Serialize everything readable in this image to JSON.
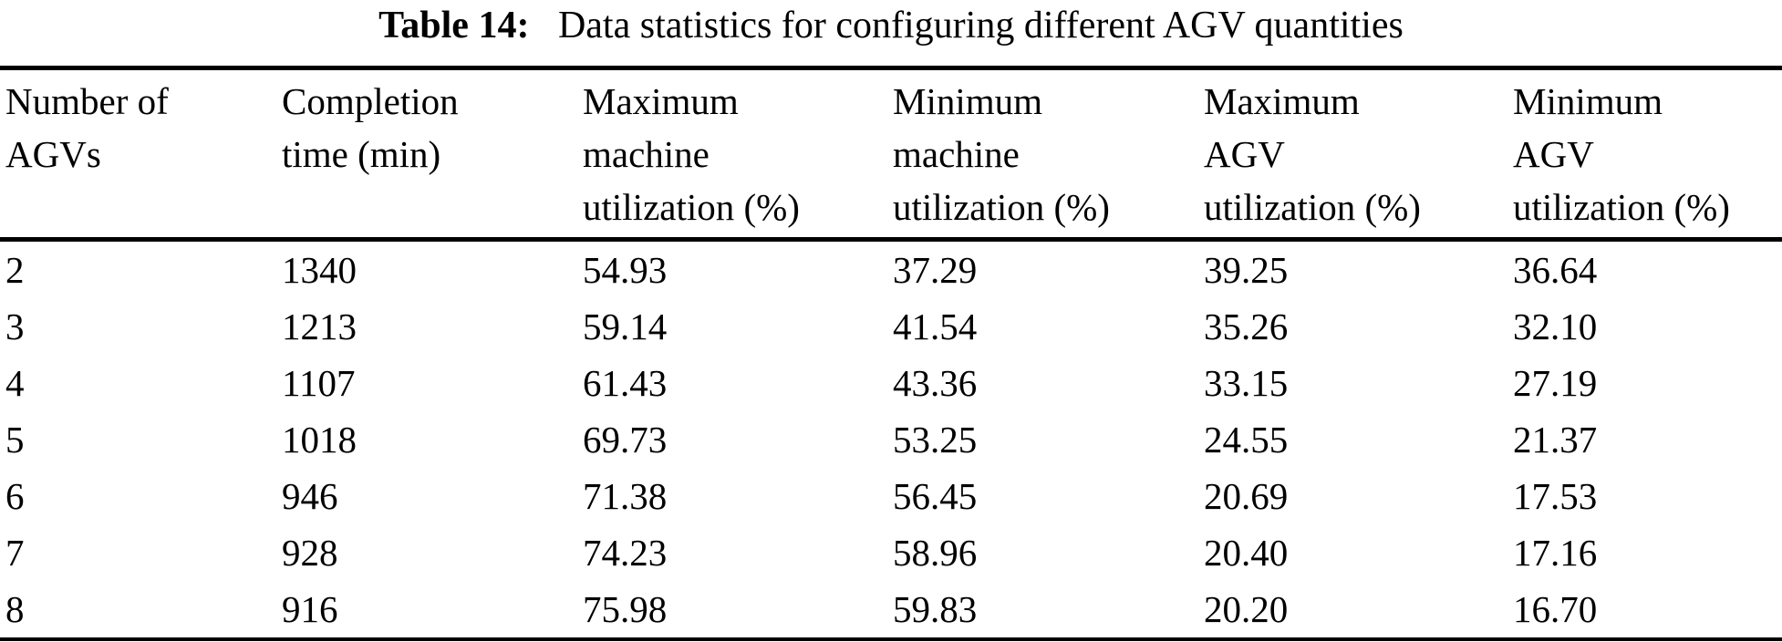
{
  "title": {
    "label": "Table 14:",
    "text": "Data statistics for configuring different AGV quantities"
  },
  "table": {
    "headers": [
      "Number of\nAGVs",
      "Completion\ntime (min)",
      "Maximum\nmachine\nutilization (%)",
      "Minimum\nmachine\nutilization (%)",
      "Maximum\nAGV\nutilization (%)",
      "Minimum\nAGV\nutilization (%)"
    ],
    "rows": [
      [
        "2",
        "1340",
        "54.93",
        "37.29",
        "39.25",
        "36.64"
      ],
      [
        "3",
        "1213",
        "59.14",
        "41.54",
        "35.26",
        "32.10"
      ],
      [
        "4",
        "1107",
        "61.43",
        "43.36",
        "33.15",
        "27.19"
      ],
      [
        "5",
        "1018",
        "69.73",
        "53.25",
        "24.55",
        "21.37"
      ],
      [
        "6",
        "946",
        "71.38",
        "56.45",
        "20.69",
        "17.53"
      ],
      [
        "7",
        "928",
        "74.23",
        "58.96",
        "20.40",
        "17.16"
      ],
      [
        "8",
        "916",
        "75.98",
        "59.83",
        "20.20",
        "16.70"
      ]
    ]
  },
  "colors": {
    "text": "#000000",
    "background": "#ffffff",
    "rule": "#000000"
  }
}
